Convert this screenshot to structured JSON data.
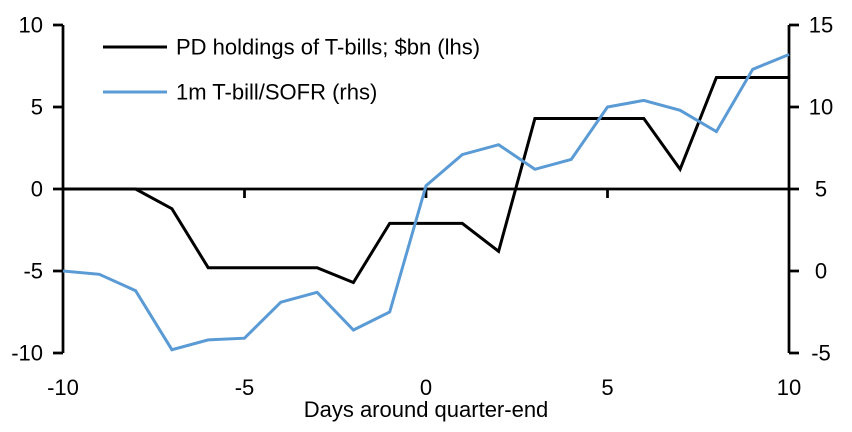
{
  "chart_data": {
    "type": "line",
    "title": "",
    "xlabel": "Days around quarter-end",
    "grid": false,
    "legend_position": "top-left",
    "x": [
      -10,
      -9,
      -8,
      -7,
      -6,
      -5,
      -4,
      -3,
      -2,
      -1,
      0,
      1,
      2,
      3,
      4,
      5,
      6,
      7,
      8,
      9,
      10
    ],
    "series": [
      {
        "name": "PD holdings of T-bills; $bn (lhs)",
        "axis": "left",
        "color": "#000000",
        "values": [
          0,
          0,
          0,
          -1.2,
          -4.8,
          -4.8,
          -4.8,
          -4.8,
          -5.7,
          -2.1,
          -2.1,
          -2.1,
          -3.8,
          4.3,
          4.3,
          4.3,
          4.3,
          1.2,
          6.8,
          6.8,
          6.8
        ]
      },
      {
        "name": "1m T-bill/SOFR (rhs)",
        "axis": "right",
        "color": "#5B9BD5",
        "values": [
          0,
          -0.2,
          -1.2,
          -4.8,
          -4.2,
          -4.1,
          -1.9,
          -1.3,
          -3.6,
          -2.5,
          5.2,
          7.1,
          7.7,
          6.2,
          6.8,
          10,
          10.4,
          9.8,
          8.5,
          12.3,
          13.2
        ]
      }
    ],
    "axes": {
      "left": {
        "min": -10,
        "max": 10,
        "ticks": [
          10,
          5,
          0,
          -5,
          -10
        ]
      },
      "right": {
        "min": -5,
        "max": 15,
        "ticks": [
          15,
          10,
          5,
          0,
          -5
        ]
      },
      "x": {
        "min": -10,
        "max": 10,
        "ticks": [
          -10,
          -5,
          0,
          5,
          10
        ],
        "zero_line_tick_days": [
          -5,
          0,
          5
        ]
      }
    },
    "axis_color": "#000000"
  }
}
